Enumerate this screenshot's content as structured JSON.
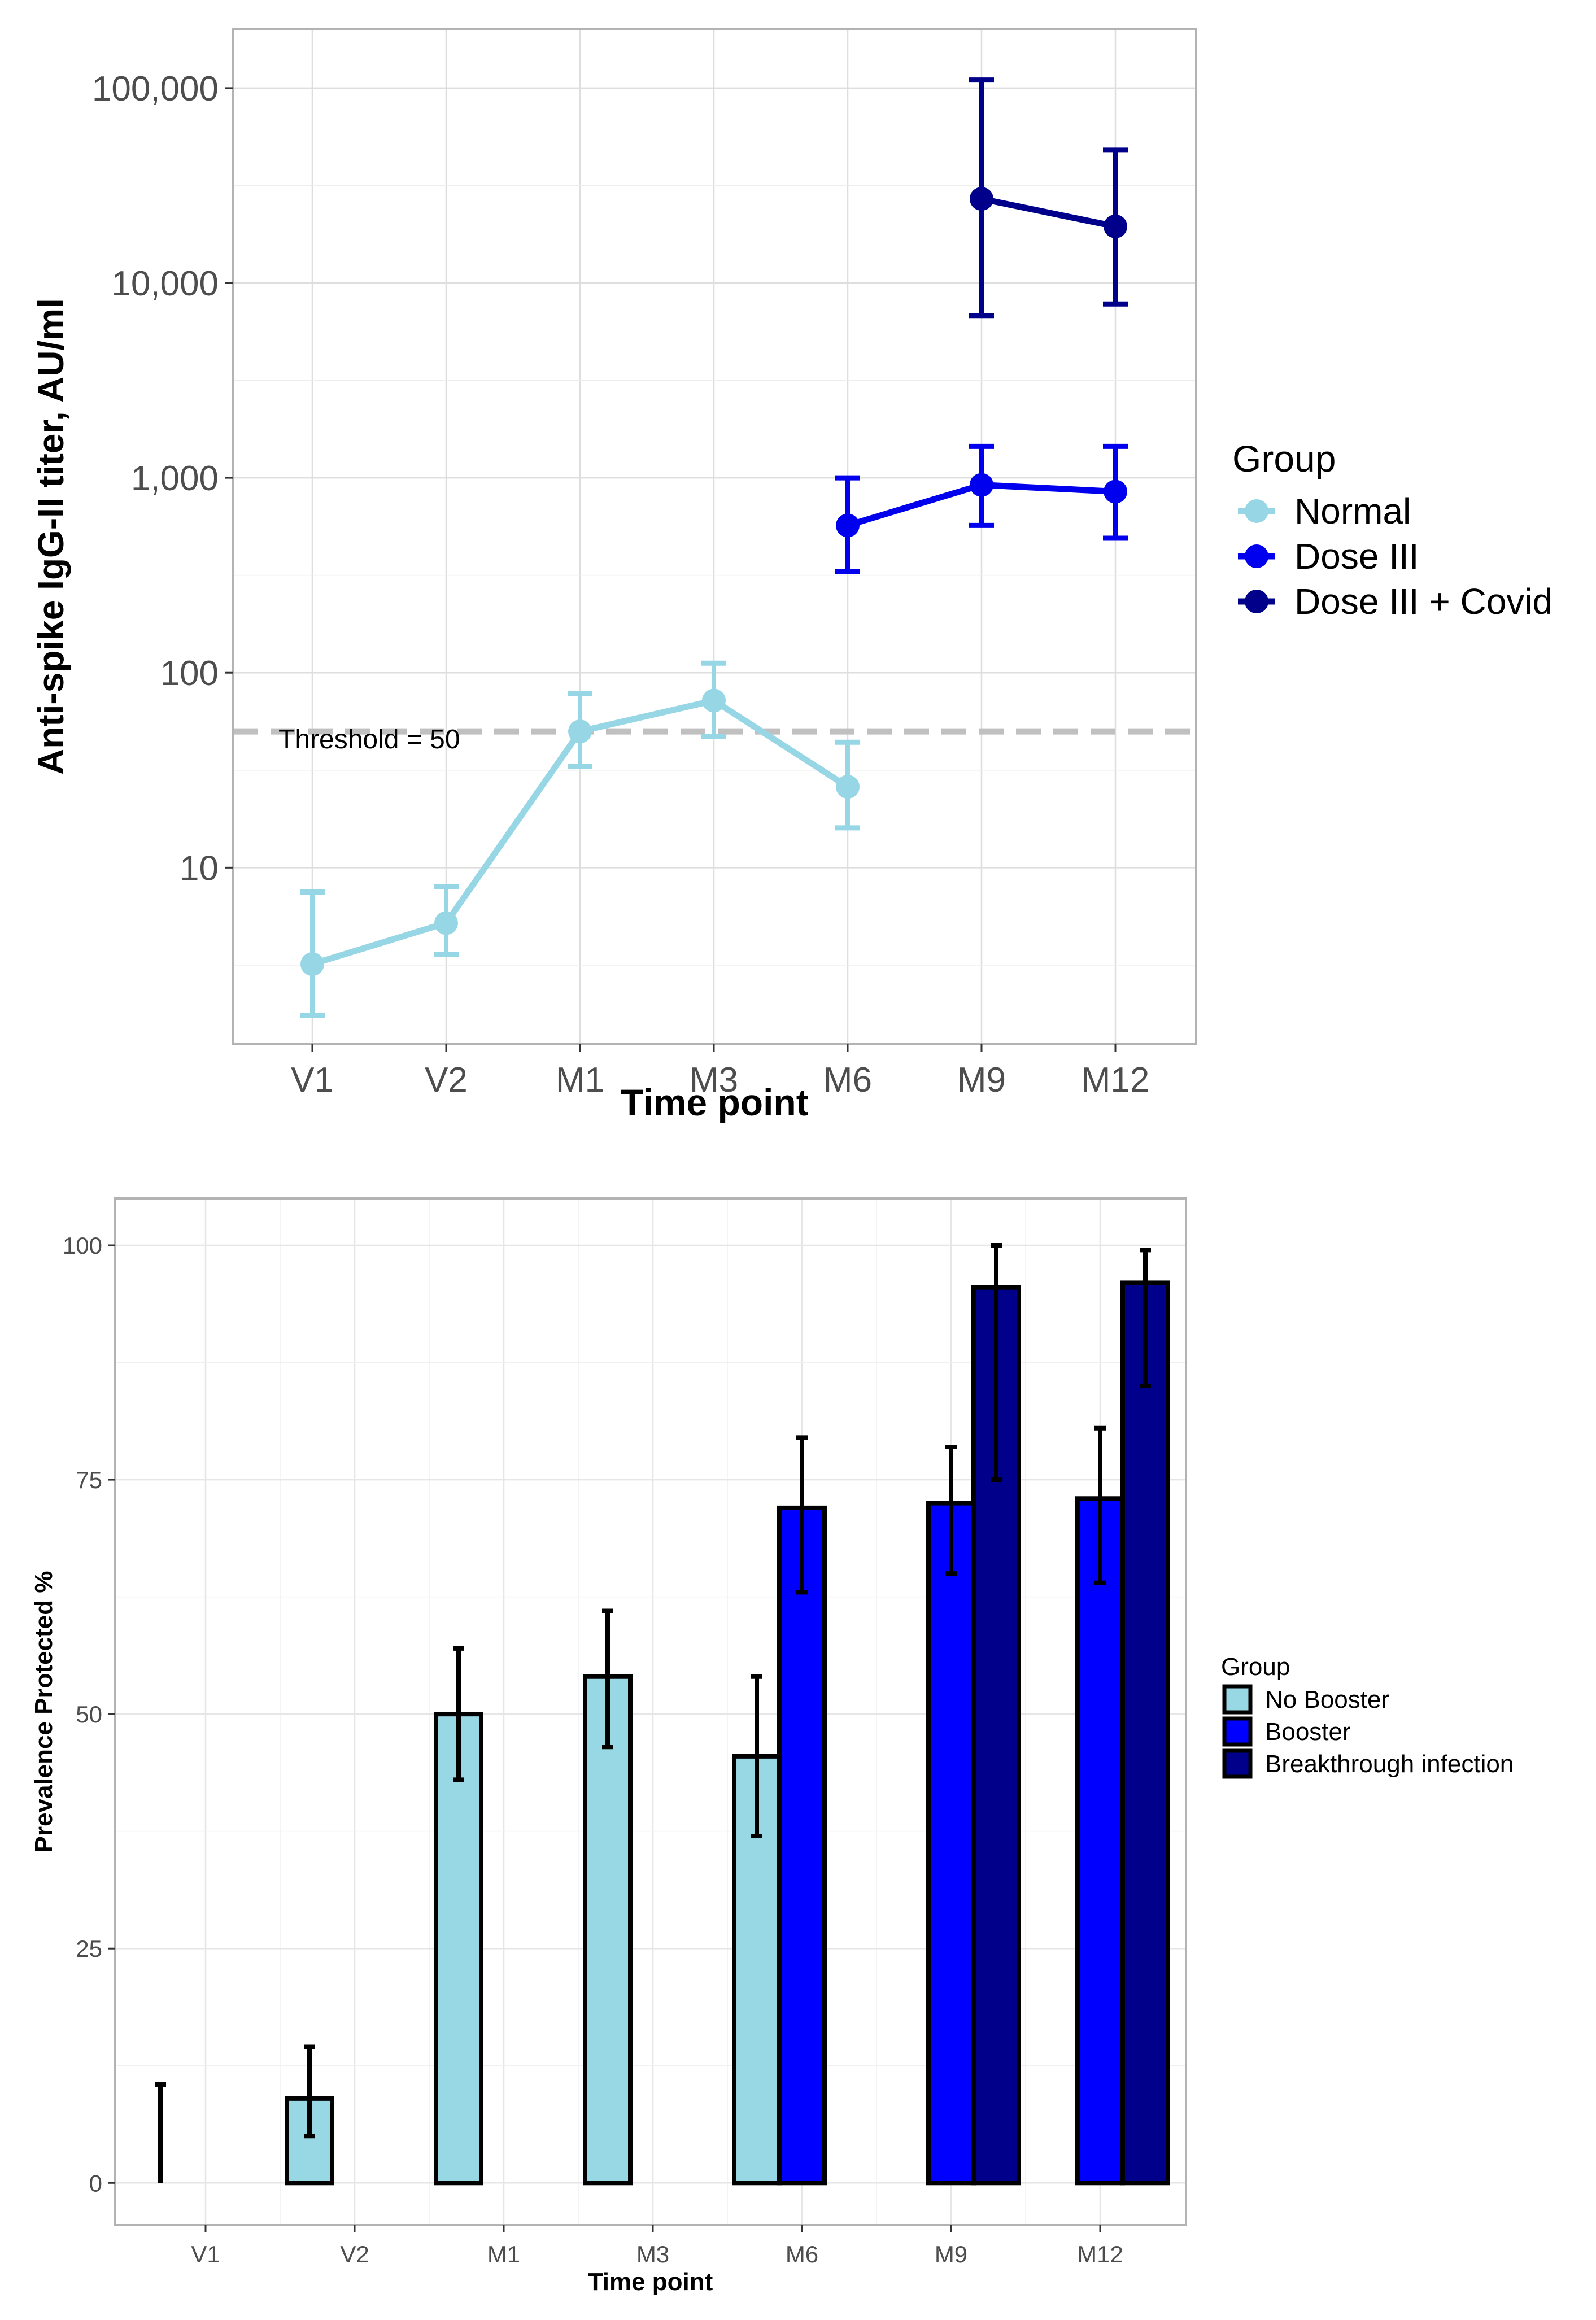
{
  "chart_data": [
    {
      "type": "line",
      "title": "",
      "xlabel": "Time point",
      "ylabel": "Anti-spike IgG-II titer, AU/ml",
      "yscale": "log10",
      "ylim": [
        1.25,
        200000
      ],
      "yticks": [
        10,
        100,
        1000,
        10000,
        100000
      ],
      "ytick_labels": [
        "10",
        "100",
        "1,000",
        "10,000",
        "100,000"
      ],
      "categories": [
        "V1",
        "V2",
        "M1",
        "M3",
        "M6",
        "M9",
        "M12"
      ],
      "grid": true,
      "legend": {
        "title": "Group",
        "position": "right"
      },
      "threshold": {
        "value": 50,
        "label": "Threshold = 50",
        "color": "#c0c0c0"
      },
      "series": [
        {
          "name": "Normal",
          "color": "#97d7e5",
          "x": [
            "V1",
            "V2",
            "M1",
            "M3",
            "M6"
          ],
          "values": [
            3.2,
            5.2,
            50,
            72,
            26
          ],
          "lower": [
            1.75,
            3.6,
            33,
            47,
            16
          ],
          "upper": [
            7.5,
            8.0,
            78,
            112,
            44
          ]
        },
        {
          "name": "Dose III",
          "color": "#0000ee",
          "x": [
            "M6",
            "M9",
            "M12"
          ],
          "values": [
            570,
            920,
            850
          ],
          "lower": [
            330,
            570,
            490
          ],
          "upper": [
            1000,
            1450,
            1450
          ]
        },
        {
          "name": "Dose III + Covid",
          "color": "#00008b",
          "x": [
            "M9",
            "M12"
          ],
          "values": [
            27000,
            19500
          ],
          "lower": [
            6800,
            7800
          ],
          "upper": [
            110000,
            48000
          ]
        }
      ]
    },
    {
      "type": "bar",
      "title": "",
      "xlabel": "Time point",
      "ylabel": "Prevalence Protected %",
      "ylim": [
        -4.5,
        105
      ],
      "yticks": [
        0,
        25,
        50,
        75,
        100
      ],
      "ytick_labels": [
        "0",
        "25",
        "50",
        "75",
        "100"
      ],
      "categories": [
        "V1",
        "V2",
        "M1",
        "M3",
        "M6",
        "M9",
        "M12"
      ],
      "grid": true,
      "legend": {
        "title": "Group",
        "position": "right"
      },
      "series": [
        {
          "name": "No Booster",
          "color": "#98d8e4",
          "values": [
            0,
            9,
            50,
            54,
            45.5,
            0,
            0
          ],
          "lower": [
            0,
            5,
            43,
            46.5,
            37,
            null,
            null
          ],
          "upper": [
            10.5,
            14.5,
            57,
            61,
            54,
            null,
            null
          ]
        },
        {
          "name": "Booster",
          "color": "#0000ff",
          "values": [
            0,
            0,
            0,
            0,
            72,
            72.5,
            73
          ],
          "lower": [
            null,
            null,
            null,
            null,
            63,
            65,
            64
          ],
          "upper": [
            null,
            null,
            null,
            null,
            79.5,
            78.5,
            80.5
          ]
        },
        {
          "name": "Breakthrough infection",
          "color": "#00008b",
          "values": [
            0,
            0,
            0,
            0,
            0,
            95.5,
            96
          ],
          "lower": [
            null,
            null,
            null,
            null,
            null,
            75,
            85
          ],
          "upper": [
            null,
            null,
            null,
            null,
            null,
            100,
            99.5
          ]
        }
      ]
    }
  ]
}
